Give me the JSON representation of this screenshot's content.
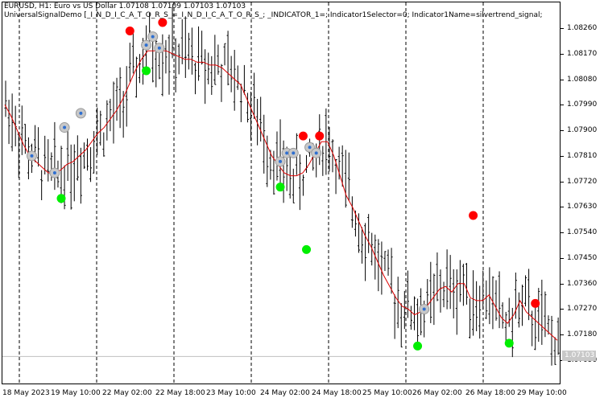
{
  "header": {
    "title": "EURUSD, H1:  Euro vs US Dollar  1.07108 1.07109 1.07103 1.07103",
    "params": "UniversalSignalDemo [_I_N_D_I_C_A_T_O_R_S_=_I_N_D_I_C_A_T_O_R_S_; _INDICATOR_1=; Indicator1Selector=0; Indicator1Name=silvertrend_signal;"
  },
  "price_axis": {
    "labels": [
      "1.08260",
      "1.08170",
      "1.08080",
      "1.07990",
      "1.07900",
      "1.07810",
      "1.07720",
      "1.07630",
      "1.07540",
      "1.07450",
      "1.07360",
      "1.07270",
      "1.07180",
      "1.07090"
    ],
    "current_price": "1.07103"
  },
  "time_axis": {
    "labels": [
      "18 May 2023",
      "19 May 10:00",
      "22 May 02:00",
      "22 May 18:00",
      "23 May 10:00",
      "24 May 02:00",
      "24 May 18:00",
      "25 May 10:00",
      "26 May 02:00",
      "26 May 18:00",
      "29 May 10:00"
    ]
  },
  "colors": {
    "background": "#ffffff",
    "bars": "#000000",
    "moving_average": "#dd0000",
    "sell_signal": "#ff0000",
    "buy_signal": "#00ee00",
    "grid": "#000000",
    "current_price_line": "#c0c0c0"
  },
  "chart_data": {
    "type": "line",
    "symbol": "EURUSD",
    "timeframe": "H1",
    "ylim": [
      1.0705,
      1.0833
    ],
    "moving_average": [
      1.0799,
      1.0795,
      1.079,
      1.0785,
      1.0781,
      1.0779,
      1.0777,
      1.0775,
      1.0775,
      1.0776,
      1.0778,
      1.0779,
      1.0781,
      1.0783,
      1.0786,
      1.0789,
      1.0791,
      1.0794,
      1.0797,
      1.0801,
      1.0806,
      1.0811,
      1.0815,
      1.0818,
      1.0818,
      1.0818,
      1.0818,
      1.0817,
      1.0816,
      1.0815,
      1.0815,
      1.0814,
      1.0814,
      1.0813,
      1.0813,
      1.0812,
      1.081,
      1.0808,
      1.0806,
      1.0801,
      1.0796,
      1.0791,
      1.0786,
      1.0781,
      1.0778,
      1.0775,
      1.0774,
      1.0774,
      1.0775,
      1.0778,
      1.0782,
      1.0786,
      1.0786,
      1.0781,
      1.0774,
      1.0767,
      1.0763,
      1.0758,
      1.0753,
      1.0749,
      1.0744,
      1.0739,
      1.0735,
      1.0731,
      1.0728,
      1.0727,
      1.0725,
      1.0726,
      1.0728,
      1.0731,
      1.0734,
      1.0735,
      1.0733,
      1.0736,
      1.0736,
      1.0731,
      1.073,
      1.073,
      1.0732,
      1.0728,
      1.0724,
      1.0722,
      1.0725,
      1.073,
      1.0726,
      1.0724,
      1.0722,
      1.072,
      1.0718,
      1.0716
    ],
    "sell_signals": [
      [
        38,
        1.0825
      ],
      [
        48,
        1.0828
      ],
      [
        91,
        1.0788
      ],
      [
        96,
        1.0788
      ],
      [
        143,
        1.076
      ],
      [
        162,
        1.0729
      ]
    ],
    "buy_signals": [
      [
        17,
        1.0766
      ],
      [
        43,
        1.0811
      ],
      [
        84,
        1.077
      ],
      [
        92,
        1.0748
      ],
      [
        126,
        1.0714
      ],
      [
        154,
        1.0715
      ]
    ],
    "signal_markers": [
      [
        8,
        1.0781
      ],
      [
        15,
        1.0775
      ],
      [
        18,
        1.0791
      ],
      [
        23,
        1.0796
      ],
      [
        43,
        1.082
      ],
      [
        45,
        1.0823
      ],
      [
        47,
        1.0819
      ],
      [
        84,
        1.0779
      ],
      [
        86,
        1.0782
      ],
      [
        88,
        1.0782
      ],
      [
        93,
        1.0784
      ],
      [
        95,
        1.0782
      ],
      [
        128,
        1.0727
      ]
    ]
  }
}
